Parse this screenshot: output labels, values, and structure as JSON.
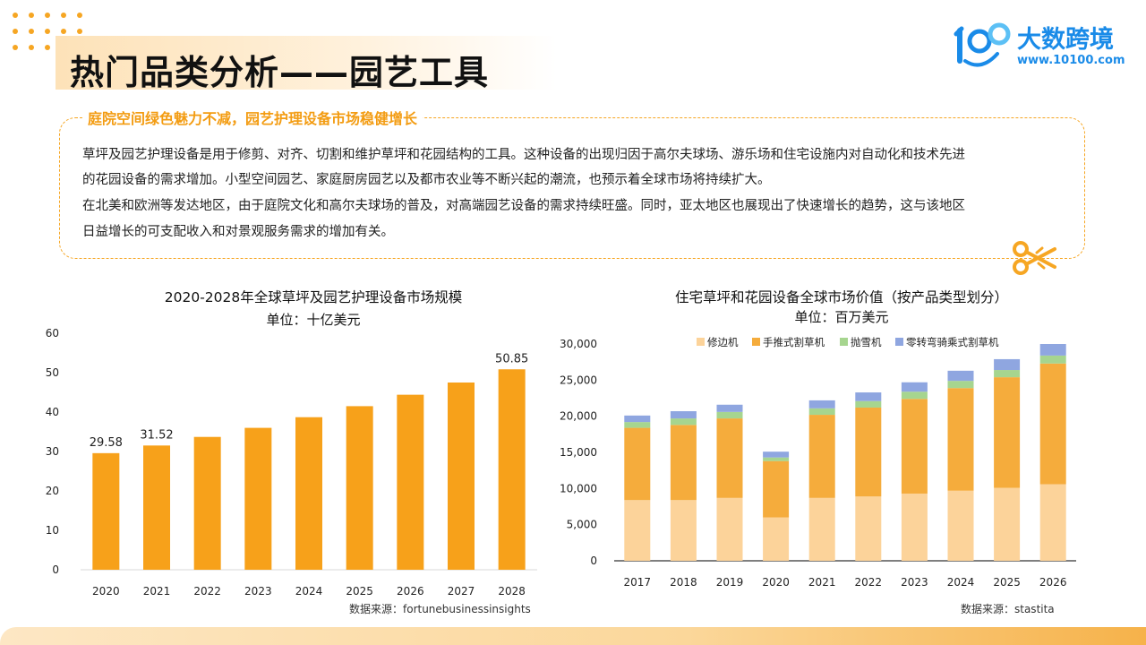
{
  "header": {
    "title": "热门品类分析——园艺工具",
    "logo_brand": "大数跨境",
    "logo_url": "www.10100.com",
    "logo_mark": "100"
  },
  "intro": {
    "subtitle": "庭院空间绿色魅力不减，园艺护理设备市场稳健增长",
    "paragraph1_line1": "草坪及园艺护理设备是用于修剪、对齐、切割和维护草坪和花园结构的工具。这种设备的出现归因于高尔夫球场、游乐场和住宅设施内对自动化和技术先进",
    "paragraph1_line2": "的花园设备的需求增加。小型空间园艺、家庭厨房园艺以及都市农业等不断兴起的潮流，也预示着全球市场将持续扩大。",
    "paragraph2_line1": "在北美和欧洲等发达地区，由于庭院文化和高尔夫球场的普及，对高端园艺设备的需求持续旺盛。同时，亚太地区也展现出了快速增长的趋势，这与该地区",
    "paragraph2_line2": "日益增长的可支配收入和对景观服务需求的增加有关。"
  },
  "colors": {
    "accent": "#f6a623",
    "bar_orange": "#f7a11a",
    "trimmer": "#fcd39a",
    "push_mower": "#f5ac3c",
    "snow_blower": "#a6d58f",
    "zero_turn": "#8fa6e0"
  },
  "chart_data": [
    {
      "type": "bar",
      "title": "2020-2028年全球草坪及园艺护理设备市场规模",
      "unit": "单位：十亿美元",
      "source": "数据来源：fortunebusinessinsights",
      "categories": [
        "2020",
        "2021",
        "2022",
        "2023",
        "2024",
        "2025",
        "2026",
        "2027",
        "2028"
      ],
      "values": [
        29.58,
        31.52,
        33.7,
        36.0,
        38.7,
        41.5,
        44.4,
        47.5,
        50.85
      ],
      "data_labels": [
        "29.58",
        "31.52",
        "",
        "",
        "",
        "",
        "",
        "",
        "50.85"
      ],
      "ylim": [
        0,
        60
      ],
      "yticks": [
        "0",
        "10",
        "20",
        "30",
        "40",
        "50",
        "60"
      ],
      "grid": false
    },
    {
      "type": "bar",
      "stacked": true,
      "title": "住宅草坪和花园设备全球市场价值（按产品类型划分）",
      "unit": "单位：百万美元",
      "source": "数据来源：stastita",
      "categories": [
        "2017",
        "2018",
        "2019",
        "2020",
        "2021",
        "2022",
        "2023",
        "2024",
        "2025",
        "2026"
      ],
      "series": [
        {
          "name": "修边机",
          "values": [
            8400,
            8400,
            8700,
            6000,
            8700,
            8900,
            9300,
            9700,
            10100,
            10600
          ]
        },
        {
          "name": "手推式割草机",
          "values": [
            10000,
            10400,
            11000,
            7800,
            11500,
            12300,
            13100,
            14200,
            15300,
            16700
          ]
        },
        {
          "name": "抛雪机",
          "values": [
            800,
            900,
            900,
            500,
            900,
            900,
            1000,
            1000,
            1000,
            1100
          ]
        },
        {
          "name": "零转弯骑乘式割草机",
          "values": [
            900,
            1000,
            1000,
            800,
            1100,
            1200,
            1300,
            1400,
            1500,
            1600
          ]
        }
      ],
      "ylim": [
        0,
        30000
      ],
      "yticks": [
        "0",
        "5,000",
        "10,000",
        "15,000",
        "20,000",
        "25,000",
        "30,000"
      ],
      "legend": "top",
      "grid": false
    }
  ]
}
